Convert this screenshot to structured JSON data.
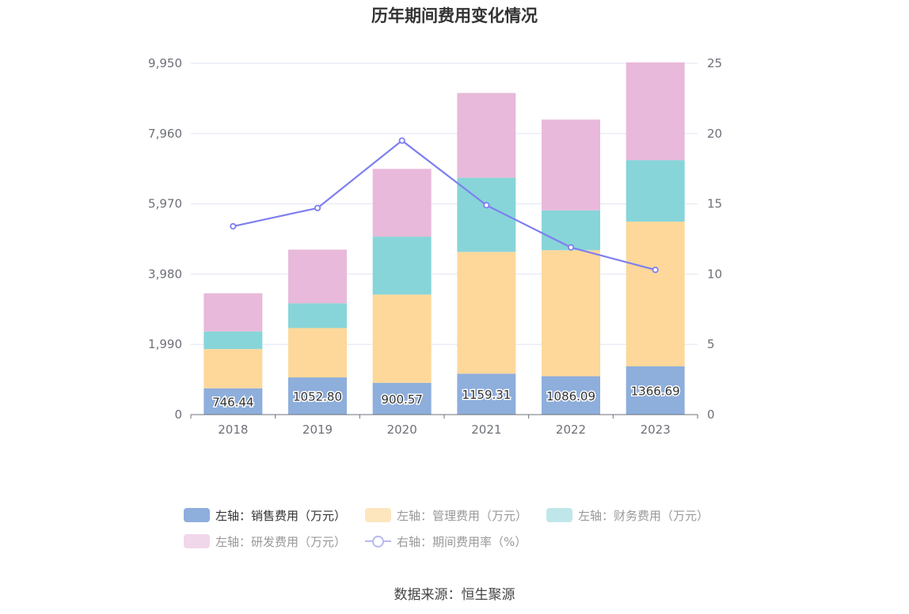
{
  "chart_data": {
    "type": "bar",
    "title": "历年期间费用变化情况",
    "categories": [
      "2018",
      "2019",
      "2020",
      "2021",
      "2022",
      "2023"
    ],
    "y_left": {
      "ticks": [
        "9,950",
        "7,960",
        "5,970",
        "3,980",
        "1,990",
        "0"
      ],
      "ylim": [
        0,
        9950
      ]
    },
    "y_right": {
      "ticks": [
        "25",
        "20",
        "15",
        "10",
        "5",
        "0"
      ],
      "ylim": [
        0,
        25
      ]
    },
    "stack_series": [
      {
        "name": "左轴：销售费用（万元）",
        "color": "#8eaedc",
        "values": [
          746.44,
          1052.8,
          900.57,
          1159.31,
          1086.09,
          1366.69
        ],
        "labels": [
          "746.44",
          "1052.80",
          "900.57",
          "1159.31",
          "1086.09",
          "1366.69"
        ]
      },
      {
        "name": "左轴：管理费用（万元）",
        "color": "#fdd89a",
        "values": [
          1110,
          1400,
          2500,
          3450,
          3570,
          4100
        ]
      },
      {
        "name": "左轴：财务费用（万元）",
        "color": "#87d5d9",
        "values": [
          500,
          700,
          1640,
          2100,
          1130,
          1740
        ]
      },
      {
        "name": "左轴：研发费用（万元）",
        "color": "#e8b9da",
        "values": [
          1080,
          1520,
          1920,
          2400,
          2570,
          2770
        ]
      }
    ],
    "line_series": {
      "name": "右轴：期间费用率（%）",
      "color": "#7f7ff0",
      "values": [
        13.4,
        14.7,
        19.5,
        14.9,
        11.9,
        10.3
      ]
    },
    "legend_position": "bottom",
    "grid": true
  },
  "legend": {
    "row1": [
      "左轴：销售费用（万元）",
      "左轴：管理费用（万元）",
      "左轴：财务费用（万元）"
    ],
    "row2": [
      "左轴：研发费用（万元）",
      "右轴：期间费用率（%）"
    ]
  },
  "source": "数据来源：恒生聚源",
  "colors": {
    "legend_sales": "#8eaedc",
    "legend_mgmt": "#fde6be",
    "legend_fin": "#bfe7ea",
    "legend_rd": "#f1d7ea"
  }
}
